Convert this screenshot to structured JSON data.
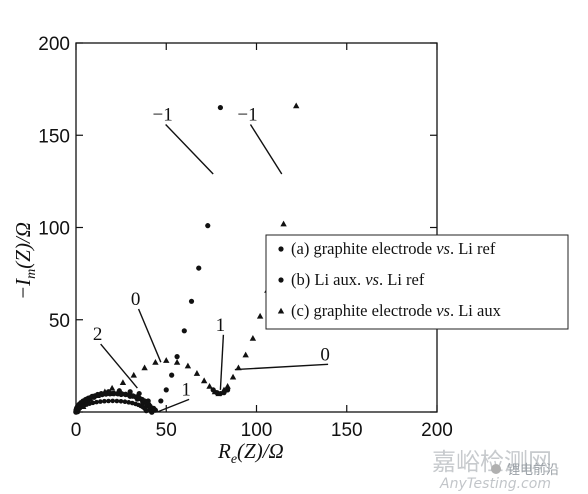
{
  "chart_data": {
    "type": "scatter",
    "xlabel_main": "R",
    "xlabel_sub": "e",
    "xlabel_rest": "(Z)/Ω",
    "ylabel_main": "−I",
    "ylabel_sub": "m",
    "ylabel_rest": "(Z)/Ω",
    "xlim": [
      0,
      200
    ],
    "ylim": [
      0,
      200
    ],
    "xticks": [
      0,
      50,
      100,
      150,
      200
    ],
    "yticks": [
      0,
      50,
      100,
      150,
      200
    ],
    "xtick_labels": [
      "0",
      "50",
      "100",
      "150",
      "200"
    ],
    "ytick_labels": [
      "50",
      "100",
      "150",
      "200"
    ],
    "grid": false,
    "legend_position": "right",
    "legend": [
      {
        "marker": "circle",
        "pre": "(a) graphite electrode ",
        "vs": "vs",
        "post": ". Li ref"
      },
      {
        "marker": "circle",
        "pre": "(b) Li aux. ",
        "vs": "vs",
        "post": ". Li ref"
      },
      {
        "marker": "triangle",
        "pre": "(c) graphite electrode ",
        "vs": "vs",
        "post": ". Li aux"
      }
    ],
    "series": [
      {
        "marker": "circle",
        "x": [
          2,
          4,
          6,
          9,
          12,
          16,
          20,
          25,
          30,
          34,
          37,
          39,
          41,
          42
        ],
        "y": [
          3,
          5,
          7,
          8.5,
          9.5,
          10,
          10,
          9.5,
          8.5,
          7,
          5,
          3,
          1,
          0
        ]
      },
      {
        "marker": "circle",
        "x": [
          44,
          47,
          50,
          53,
          56,
          60,
          64,
          68,
          73,
          80
        ],
        "y": [
          1,
          6,
          12,
          20,
          30,
          44,
          60,
          78,
          101,
          165
        ]
      },
      {
        "marker": "circle",
        "x": [
          6,
          10,
          14,
          18,
          24,
          30,
          35,
          40,
          43
        ],
        "y": [
          5,
          8,
          10,
          11,
          11.5,
          11,
          10,
          6,
          2
        ]
      },
      {
        "marker": "triangle",
        "x": [
          4,
          8,
          12,
          16,
          20,
          26,
          32,
          38,
          44,
          50,
          56,
          62,
          67,
          71,
          74,
          77,
          79
        ],
        "y": [
          3,
          7,
          9,
          11,
          13,
          16,
          20,
          24,
          27,
          28,
          27,
          25,
          21,
          17,
          14,
          11,
          10
        ]
      },
      {
        "marker": "triangle",
        "x": [
          82,
          84,
          87,
          90,
          94,
          98,
          102,
          106,
          110,
          115,
          122
        ],
        "y": [
          12,
          14,
          19,
          24,
          31,
          40,
          52,
          66,
          80,
          102,
          166
        ]
      }
    ],
    "annotations": [
      {
        "text": "−1",
        "label_x": 48,
        "label_y": 158,
        "point_x": 76,
        "point_y": 129
      },
      {
        "text": "−1",
        "label_x": 95,
        "label_y": 158,
        "point_x": 114,
        "point_y": 129
      },
      {
        "text": "0",
        "label_x": 33,
        "label_y": 58,
        "point_x": 47,
        "point_y": 27
      },
      {
        "text": "2",
        "label_x": 12,
        "label_y": 39,
        "point_x": 34,
        "point_y": 13
      },
      {
        "text": "1",
        "label_x": 80,
        "label_y": 44,
        "point_x": 80,
        "point_y": 12
      },
      {
        "text": "0",
        "label_x": 138,
        "label_y": 28,
        "point_x": 88,
        "point_y": 23
      },
      {
        "text": "1",
        "label_x": 61,
        "label_y": 9,
        "point_x": 45,
        "point_y": 0
      }
    ]
  },
  "watermark": {
    "chinese": "嘉峪检测网",
    "latin": "AnyTesting.com",
    "wechat": "锂电前沿"
  }
}
